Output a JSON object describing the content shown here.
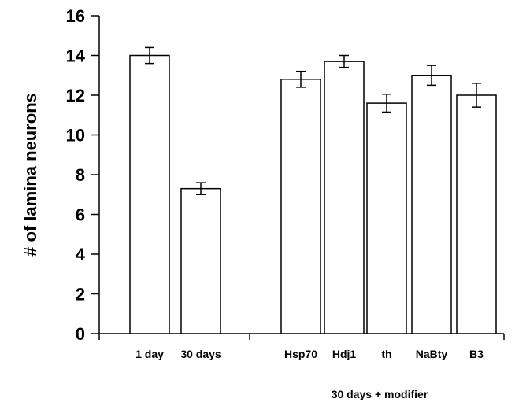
{
  "chart_data": {
    "type": "bar",
    "title": "",
    "ylabel": "# of lamina neurons",
    "xlabel": "",
    "ylim": [
      0,
      16
    ],
    "yticks": [
      0,
      2,
      4,
      6,
      8,
      10,
      12,
      14,
      16
    ],
    "grid": false,
    "legend": "none",
    "categories": [
      "1 day",
      "30 days",
      "Hsp70",
      "Hdj1",
      "th",
      "NaBty",
      "B3"
    ],
    "values": [
      14.0,
      7.3,
      12.8,
      13.7,
      11.6,
      13.0,
      12.0
    ],
    "errors": [
      0.4,
      0.3,
      0.4,
      0.3,
      0.45,
      0.5,
      0.6
    ],
    "group_label": "30 days + modifier",
    "bar_color": "#ffffff",
    "edge_color": "#000000"
  }
}
